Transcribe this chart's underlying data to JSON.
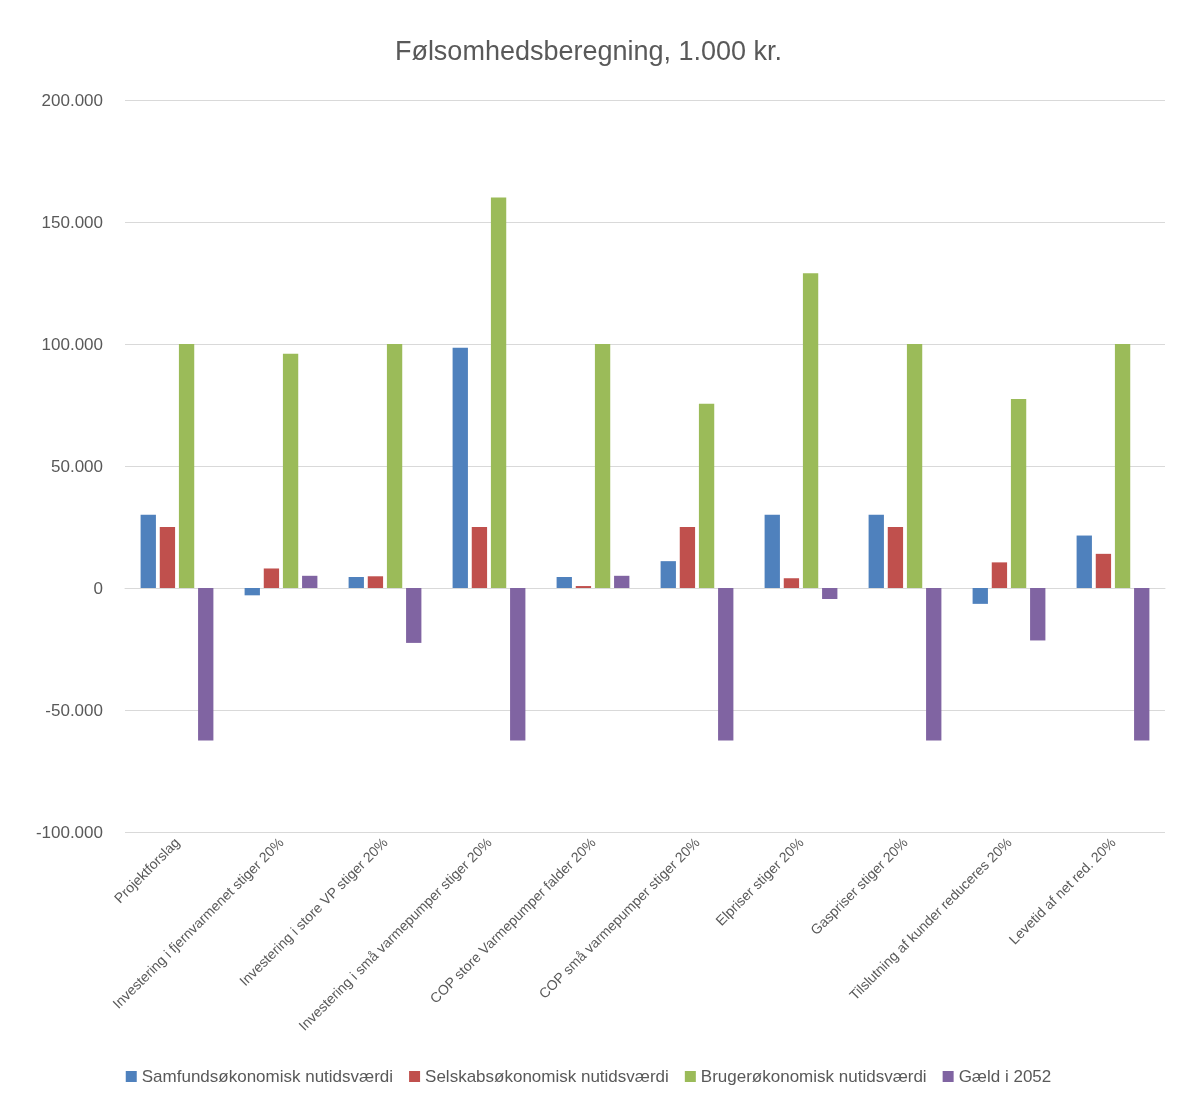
{
  "chart_data": {
    "type": "bar",
    "title": "Følsomhedsberegning, 1.000 kr.",
    "categories": [
      "Projektforslag",
      "Investering i fjernvarmenet stiger 20%",
      "Investering i store VP stiger 20%",
      "Investering i små varmepumper stiger 20%",
      "COP store Varmepumper falder 20%",
      "COP små varmepumper stiger 20%",
      "Elpriser stiger 20%",
      "Gaspriser stiger 20%",
      "Tilslutning af kunder reduceres 20%",
      "Levetid af net red. 20%"
    ],
    "series": [
      {
        "name": "Samfundsøkonomisk nutidsværdi",
        "color": "#4f81bd",
        "values": [
          30000,
          -3000,
          4500,
          98500,
          4500,
          11000,
          30000,
          30000,
          -6500,
          21500
        ]
      },
      {
        "name": "Selskabsøkonomisk nutidsværdi",
        "color": "#c0504d",
        "values": [
          25000,
          8000,
          4800,
          25000,
          800,
          25000,
          4000,
          25000,
          10500,
          14000
        ]
      },
      {
        "name": "Brugerøkonomisk nutidsværdi",
        "color": "#9bbb59",
        "values": [
          100000,
          96000,
          100000,
          160000,
          100000,
          75500,
          129000,
          100000,
          77500,
          100000
        ]
      },
      {
        "name": "Gæld i 2052",
        "color": "#8064a2",
        "values": [
          -62500,
          5000,
          -22500,
          -62500,
          5000,
          -62500,
          -4500,
          -62500,
          -21500,
          -62500
        ]
      }
    ],
    "ylim": [
      -100000,
      200000
    ],
    "yticks": [
      {
        "value": -100000,
        "label": "-100.000"
      },
      {
        "value": -50000,
        "label": "-50.000"
      },
      {
        "value": 0,
        "label": "0"
      },
      {
        "value": 50000,
        "label": "50.000"
      },
      {
        "value": 100000,
        "label": "100.000"
      },
      {
        "value": 150000,
        "label": "150.000"
      },
      {
        "value": 200000,
        "label": "200.000"
      }
    ],
    "grid": "y",
    "legend": "bottom"
  }
}
